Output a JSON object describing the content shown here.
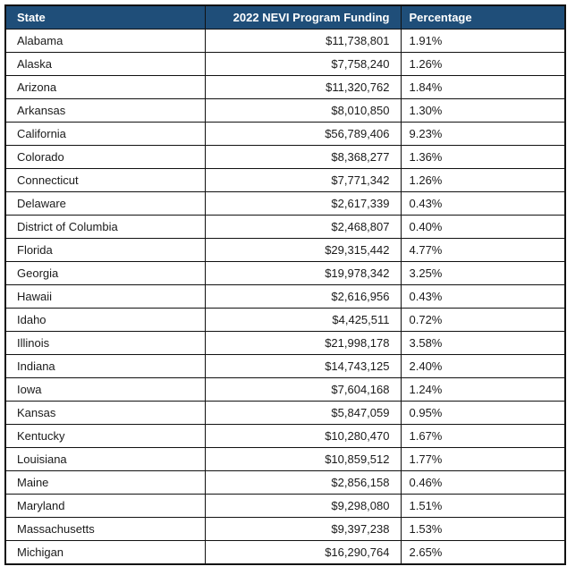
{
  "colors": {
    "header_bg": "#1F4E79",
    "header_text": "#FFFFFF",
    "border": "#111111",
    "row_bg": "#FFFFFF",
    "body_text": "#1A1A1A"
  },
  "table": {
    "columns": [
      "State",
      "2022 NEVI Program Funding",
      "Percentage"
    ],
    "rows": [
      {
        "state": "Alabama",
        "funding": "$11,738,801",
        "percentage": "1.91%"
      },
      {
        "state": "Alaska",
        "funding": "$7,758,240",
        "percentage": "1.26%"
      },
      {
        "state": "Arizona",
        "funding": "$11,320,762",
        "percentage": "1.84%"
      },
      {
        "state": "Arkansas",
        "funding": "$8,010,850",
        "percentage": "1.30%"
      },
      {
        "state": "California",
        "funding": "$56,789,406",
        "percentage": "9.23%"
      },
      {
        "state": "Colorado",
        "funding": "$8,368,277",
        "percentage": "1.36%"
      },
      {
        "state": "Connecticut",
        "funding": "$7,771,342",
        "percentage": "1.26%"
      },
      {
        "state": "Delaware",
        "funding": "$2,617,339",
        "percentage": "0.43%"
      },
      {
        "state": "District of Columbia",
        "funding": "$2,468,807",
        "percentage": "0.40%"
      },
      {
        "state": "Florida",
        "funding": "$29,315,442",
        "percentage": "4.77%"
      },
      {
        "state": "Georgia",
        "funding": "$19,978,342",
        "percentage": "3.25%"
      },
      {
        "state": "Hawaii",
        "funding": "$2,616,956",
        "percentage": "0.43%"
      },
      {
        "state": "Idaho",
        "funding": "$4,425,511",
        "percentage": "0.72%"
      },
      {
        "state": "Illinois",
        "funding": "$21,998,178",
        "percentage": "3.58%"
      },
      {
        "state": "Indiana",
        "funding": "$14,743,125",
        "percentage": "2.40%"
      },
      {
        "state": "Iowa",
        "funding": "$7,604,168",
        "percentage": "1.24%"
      },
      {
        "state": "Kansas",
        "funding": "$5,847,059",
        "percentage": "0.95%"
      },
      {
        "state": "Kentucky",
        "funding": "$10,280,470",
        "percentage": "1.67%"
      },
      {
        "state": "Louisiana",
        "funding": "$10,859,512",
        "percentage": "1.77%"
      },
      {
        "state": "Maine",
        "funding": "$2,856,158",
        "percentage": "0.46%"
      },
      {
        "state": "Maryland",
        "funding": "$9,298,080",
        "percentage": "1.51%"
      },
      {
        "state": "Massachusetts",
        "funding": "$9,397,238",
        "percentage": "1.53%"
      },
      {
        "state": "Michigan",
        "funding": "$16,290,764",
        "percentage": "2.65%"
      }
    ]
  }
}
